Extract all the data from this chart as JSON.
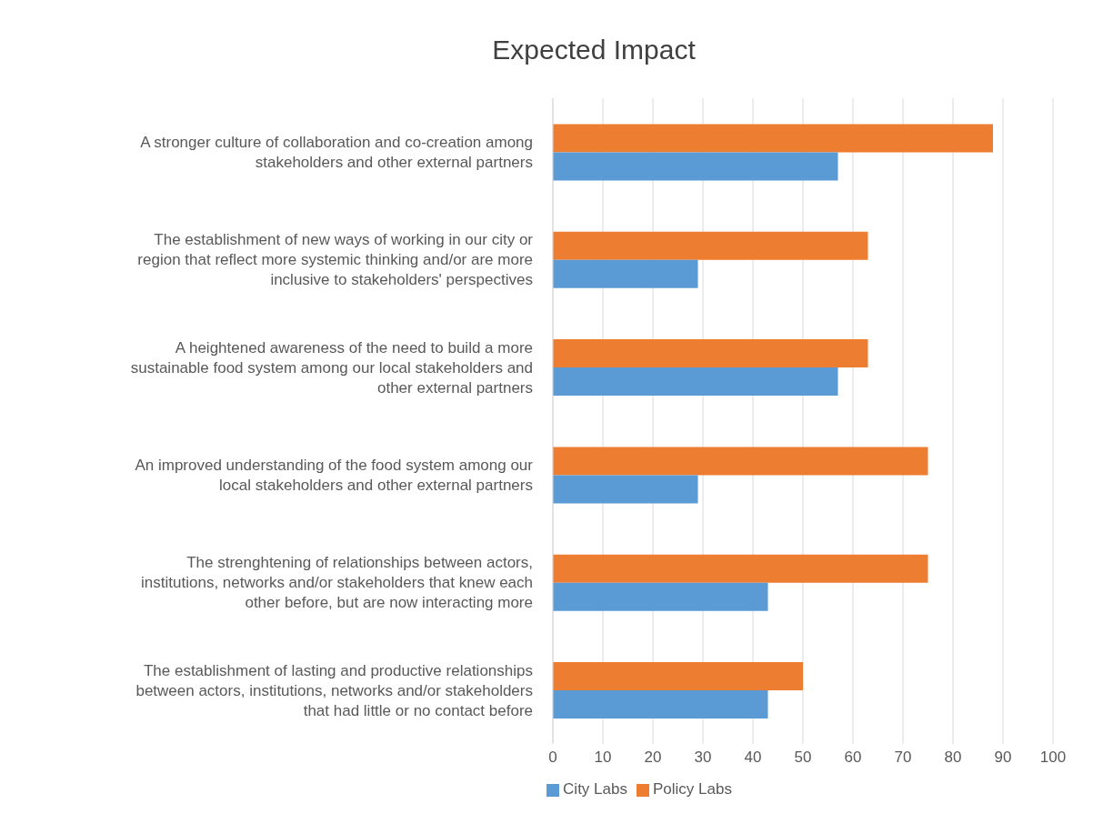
{
  "chart_data": {
    "type": "bar",
    "orientation": "horizontal",
    "title": "Expected Impact",
    "categories": [
      "A stronger culture of collaboration and co-creation among stakeholders and other external partners",
      "The establishment of new ways of working in our city or region that reflect more systemic thinking and/or are more inclusive to stakeholders' perspectives",
      "A heightened awareness of the need to build a more sustainable food system among our local stakeholders and other external partners",
      "An improved understanding of the food system among our local stakeholders and other external partners",
      "The strenghtening of relationships between actors, institutions, networks and/or stakeholders that knew each other before, but are now interacting more",
      "The establishment of lasting and productive relationships between actors, institutions, networks and/or stakeholders that had little or no contact before"
    ],
    "series": [
      {
        "name": "Policy Labs",
        "color": "#ed7d31",
        "values": [
          88,
          63,
          63,
          75,
          75,
          50
        ]
      },
      {
        "name": "City Labs",
        "color": "#5b9bd5",
        "values": [
          57,
          29,
          57,
          29,
          43,
          43
        ]
      }
    ],
    "xlim": [
      0,
      100
    ],
    "xticks": [
      0,
      10,
      20,
      30,
      40,
      50,
      60,
      70,
      80,
      90,
      100
    ],
    "grid": "x",
    "legend": "bottom"
  }
}
